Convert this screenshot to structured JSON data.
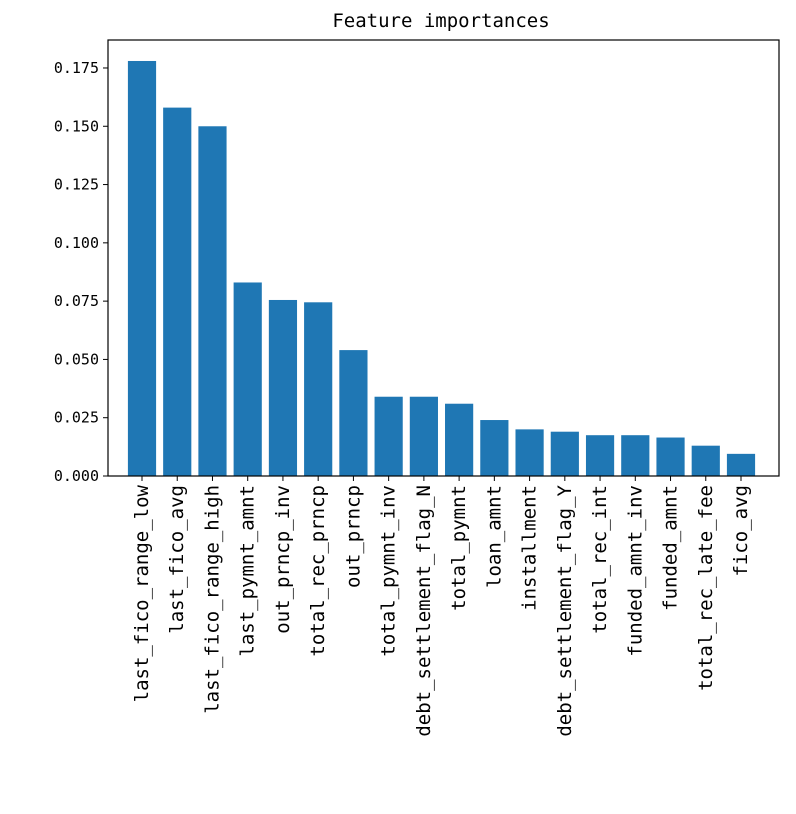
{
  "chart_data": {
    "type": "bar",
    "title": "Feature importances",
    "xlabel": "",
    "ylabel": "",
    "bar_color": "#1f77b4",
    "ylim": [
      0,
      0.187
    ],
    "yticks": [
      "0.000",
      "0.025",
      "0.050",
      "0.075",
      "0.100",
      "0.125",
      "0.150",
      "0.175"
    ],
    "categories": [
      "last_fico_range_low",
      "last_fico_avg",
      "last_fico_range_high",
      "last_pymnt_amnt",
      "out_prncp_inv",
      "total_rec_prncp",
      "out_prncp",
      "total_pymnt_inv",
      "debt_settlement_flag_N",
      "total_pymnt",
      "loan_amnt",
      "installment",
      "debt_settlement_flag_Y",
      "total_rec_int",
      "funded_amnt_inv",
      "funded_amnt",
      "total_rec_late_fee",
      "fico_avg"
    ],
    "values": [
      0.178,
      0.158,
      0.15,
      0.083,
      0.0755,
      0.0745,
      0.054,
      0.034,
      0.034,
      0.031,
      0.024,
      0.02,
      0.019,
      0.0175,
      0.0175,
      0.0165,
      0.013,
      0.0095
    ]
  }
}
